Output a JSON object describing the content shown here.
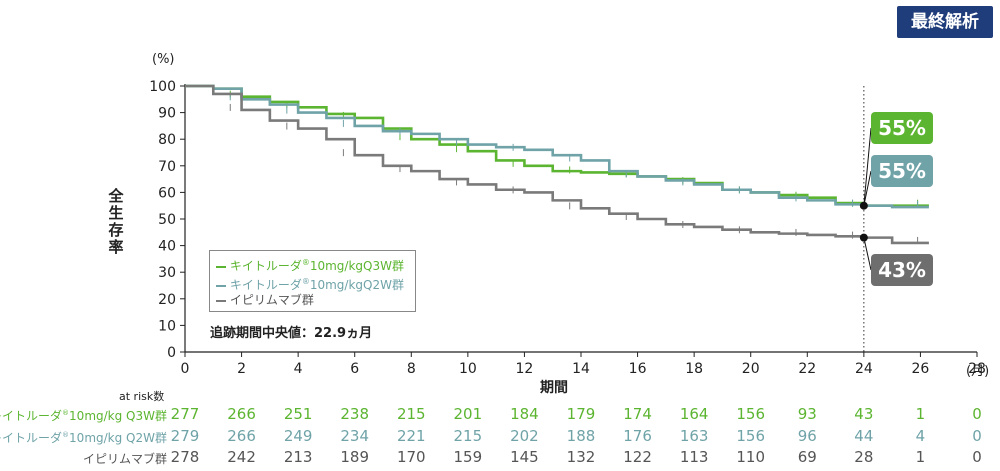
{
  "badge": "最終解析",
  "y_unit": "(%)",
  "y_axis_title": "全生存率",
  "x_axis_title": "期間",
  "x_unit": "(月)",
  "median_followup": "追跡期間中央値：22.9ヵ月",
  "risk_title": "at risk数",
  "colors": {
    "q3w": "#5cb531",
    "q2w": "#6fa3a8",
    "ipi": "#7a7a7a",
    "badge": "#1f3d7a"
  },
  "legend": [
    {
      "prefix": "キイトルーダ",
      "mark": "®",
      "suffix": "10mg/kgQ3W群"
    },
    {
      "prefix": "キイトルーダ",
      "mark": "®",
      "suffix": "10mg/kgQ2W群"
    },
    {
      "prefix": "イピリムマブ群",
      "mark": "",
      "suffix": ""
    }
  ],
  "chart_data": {
    "type": "line",
    "title": "",
    "xlabel": "期間",
    "ylabel": "全生存率",
    "xlim": [
      0,
      28
    ],
    "ylim": [
      0,
      100
    ],
    "x_ticks": [
      0,
      2,
      4,
      6,
      8,
      10,
      12,
      14,
      16,
      18,
      20,
      22,
      24,
      26,
      28
    ],
    "y_ticks": [
      0,
      10,
      20,
      30,
      40,
      50,
      60,
      70,
      80,
      90,
      100
    ],
    "annotation_line_x": 24,
    "series": [
      {
        "name": "キイトルーダ®10mg/kgQ3W群",
        "color": "#5cb531",
        "points": [
          [
            0,
            100
          ],
          [
            1,
            99
          ],
          [
            2,
            96
          ],
          [
            3,
            94
          ],
          [
            4,
            92
          ],
          [
            5,
            89.5
          ],
          [
            6,
            88
          ],
          [
            7,
            84
          ],
          [
            8,
            80
          ],
          [
            9,
            78
          ],
          [
            10,
            75.5
          ],
          [
            11,
            72
          ],
          [
            12,
            70
          ],
          [
            13,
            68
          ],
          [
            14,
            67.5
          ],
          [
            15,
            67
          ],
          [
            16,
            66
          ],
          [
            17,
            65
          ],
          [
            18,
            63.5
          ],
          [
            19,
            61
          ],
          [
            20,
            60
          ],
          [
            21,
            59
          ],
          [
            22,
            58
          ],
          [
            23,
            56
          ],
          [
            24,
            55
          ],
          [
            25,
            55
          ],
          [
            26.3,
            55
          ]
        ]
      },
      {
        "name": "キイトルーダ®10mg/kgQ2W群",
        "color": "#6fa3a8",
        "points": [
          [
            0,
            100
          ],
          [
            1,
            99
          ],
          [
            2,
            95
          ],
          [
            3,
            93
          ],
          [
            4,
            90
          ],
          [
            5,
            88
          ],
          [
            6,
            85
          ],
          [
            7,
            83
          ],
          [
            8,
            82
          ],
          [
            9,
            80
          ],
          [
            10,
            78
          ],
          [
            11,
            77
          ],
          [
            12,
            76
          ],
          [
            13,
            74
          ],
          [
            14,
            72
          ],
          [
            15,
            68
          ],
          [
            16,
            66
          ],
          [
            17,
            64.5
          ],
          [
            18,
            63
          ],
          [
            19,
            61
          ],
          [
            20,
            60
          ],
          [
            21,
            58
          ],
          [
            22,
            57
          ],
          [
            23,
            55.5
          ],
          [
            24,
            55
          ],
          [
            25,
            54.5
          ],
          [
            26.3,
            54.5
          ]
        ]
      },
      {
        "name": "イピリムマブ群",
        "color": "#7a7a7a",
        "points": [
          [
            0,
            100
          ],
          [
            1,
            97
          ],
          [
            2,
            91
          ],
          [
            3,
            87
          ],
          [
            4,
            84
          ],
          [
            5,
            80
          ],
          [
            6,
            74
          ],
          [
            7,
            70
          ],
          [
            8,
            68
          ],
          [
            9,
            65
          ],
          [
            10,
            63
          ],
          [
            11,
            61
          ],
          [
            12,
            60
          ],
          [
            13,
            57
          ],
          [
            14,
            54
          ],
          [
            15,
            52
          ],
          [
            16,
            50
          ],
          [
            17,
            48
          ],
          [
            18,
            47
          ],
          [
            19,
            46
          ],
          [
            20,
            45
          ],
          [
            21,
            44.5
          ],
          [
            22,
            44
          ],
          [
            23,
            43.5
          ],
          [
            24,
            43
          ],
          [
            25,
            41
          ],
          [
            26.3,
            41
          ]
        ]
      }
    ],
    "callouts": [
      {
        "label": "55%",
        "x": 24,
        "y": 55,
        "color": "#5cb531"
      },
      {
        "label": "55%",
        "x": 24,
        "y": 55,
        "color": "#6fa3a8"
      },
      {
        "label": "43%",
        "x": 24,
        "y": 43,
        "color": "#7a7a7a"
      }
    ]
  },
  "at_risk": {
    "times": [
      0,
      2,
      4,
      6,
      8,
      10,
      12,
      14,
      16,
      18,
      20,
      22,
      24,
      26,
      28
    ],
    "rows": [
      {
        "prefix": "キイトルーダ",
        "mark": "®",
        "suffix": "10mg/kg Q3W群",
        "color": "#5cb531",
        "values": [
          "277",
          "266",
          "251",
          "238",
          "215",
          "201",
          "184",
          "179",
          "174",
          "164",
          "156",
          "93",
          "43",
          "1",
          "0"
        ]
      },
      {
        "prefix": "キイトルーダ",
        "mark": "®",
        "suffix": "10mg/kg Q2W群",
        "color": "#6fa3a8",
        "values": [
          "279",
          "266",
          "249",
          "234",
          "221",
          "215",
          "202",
          "188",
          "176",
          "163",
          "156",
          "96",
          "44",
          "4",
          "0"
        ]
      },
      {
        "prefix": "イピリムマブ群",
        "mark": "",
        "suffix": "",
        "color": "#555555",
        "values": [
          "278",
          "242",
          "213",
          "189",
          "170",
          "159",
          "145",
          "132",
          "122",
          "113",
          "110",
          "69",
          "28",
          "1",
          "0"
        ]
      }
    ]
  }
}
